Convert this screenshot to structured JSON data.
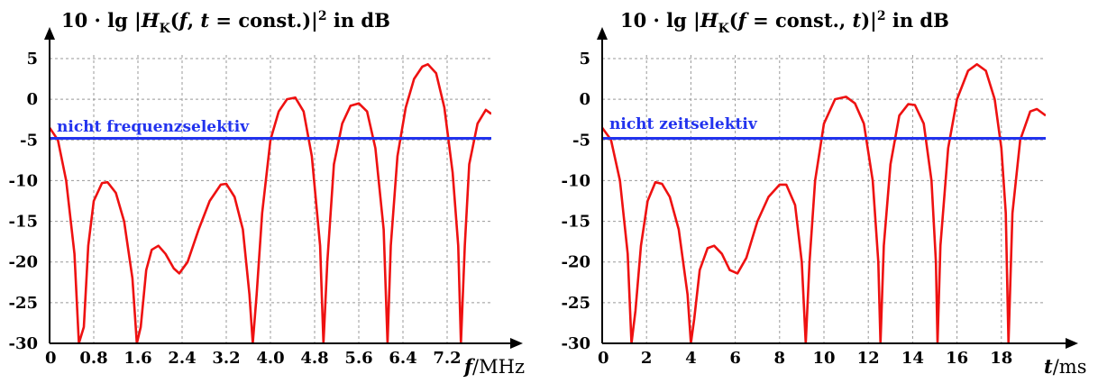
{
  "chart_data": [
    {
      "type": "line",
      "title_parts": [
        "10 · lg |",
        "H",
        "K",
        "(",
        "f",
        ", ",
        "t",
        " = const.)|",
        "2",
        " in dB"
      ],
      "xlabel_var": "f",
      "xlabel_unit": "/MHz",
      "xlim": [
        0,
        8
      ],
      "ylim": [
        -30,
        5
      ],
      "x_ticks": [
        0,
        0.8,
        1.6,
        2.4,
        3.2,
        4.0,
        4.8,
        5.6,
        6.4,
        7.2
      ],
      "x_tick_labels": [
        "0",
        "0.8",
        "1.6",
        "2.4",
        "3.2",
        "4.0",
        "4.8",
        "5.6",
        "6.4",
        "7.2"
      ],
      "y_ticks": [
        5,
        0,
        -5,
        -10,
        -15,
        -20,
        -25,
        -30
      ],
      "y_tick_labels": [
        "5",
        "0",
        "-5",
        "-10",
        "-15",
        "-20",
        "-25",
        "-30"
      ],
      "grid": true,
      "annotation": "nicht frequenzselektiv",
      "series": [
        {
          "color": "#ee1111",
          "points": [
            [
              0,
              -3.5
            ],
            [
              0.15,
              -5
            ],
            [
              0.3,
              -10
            ],
            [
              0.45,
              -19
            ],
            [
              0.53,
              -30
            ],
            [
              0.62,
              -28
            ],
            [
              0.7,
              -18
            ],
            [
              0.8,
              -12.5
            ],
            [
              0.95,
              -10.3
            ],
            [
              1.05,
              -10.2
            ],
            [
              1.2,
              -11.5
            ],
            [
              1.35,
              -15
            ],
            [
              1.5,
              -22
            ],
            [
              1.58,
              -30
            ],
            [
              1.65,
              -28
            ],
            [
              1.75,
              -21
            ],
            [
              1.85,
              -18.5
            ],
            [
              1.97,
              -18
            ],
            [
              2.1,
              -19
            ],
            [
              2.25,
              -20.8
            ],
            [
              2.35,
              -21.4
            ],
            [
              2.5,
              -20
            ],
            [
              2.7,
              -16
            ],
            [
              2.9,
              -12.5
            ],
            [
              3.1,
              -10.5
            ],
            [
              3.2,
              -10.4
            ],
            [
              3.35,
              -12
            ],
            [
              3.5,
              -16
            ],
            [
              3.62,
              -24
            ],
            [
              3.68,
              -30
            ],
            [
              3.75,
              -24
            ],
            [
              3.85,
              -14
            ],
            [
              4.0,
              -5
            ],
            [
              4.15,
              -1.5
            ],
            [
              4.3,
              0
            ],
            [
              4.45,
              0.2
            ],
            [
              4.6,
              -1.5
            ],
            [
              4.75,
              -7
            ],
            [
              4.9,
              -18
            ],
            [
              4.96,
              -30
            ],
            [
              5.03,
              -20
            ],
            [
              5.15,
              -8
            ],
            [
              5.3,
              -3
            ],
            [
              5.45,
              -0.8
            ],
            [
              5.6,
              -0.5
            ],
            [
              5.75,
              -1.5
            ],
            [
              5.9,
              -6
            ],
            [
              6.05,
              -16
            ],
            [
              6.12,
              -30
            ],
            [
              6.18,
              -18
            ],
            [
              6.3,
              -7
            ],
            [
              6.45,
              -1
            ],
            [
              6.6,
              2.5
            ],
            [
              6.75,
              4
            ],
            [
              6.85,
              4.3
            ],
            [
              7.0,
              3.2
            ],
            [
              7.15,
              -1
            ],
            [
              7.3,
              -9
            ],
            [
              7.4,
              -18
            ],
            [
              7.45,
              -30
            ],
            [
              7.52,
              -18
            ],
            [
              7.6,
              -8
            ],
            [
              7.75,
              -3
            ],
            [
              7.9,
              -1.3
            ],
            [
              8.0,
              -1.8
            ]
          ]
        },
        {
          "color": "#2233ee",
          "points": [
            [
              0,
              -4.8
            ],
            [
              8,
              -4.8
            ]
          ]
        }
      ]
    },
    {
      "type": "line",
      "title_parts": [
        "10 · lg |",
        "H",
        "K",
        "(",
        "f",
        " = const., ",
        "t",
        ")|",
        "2",
        " in dB"
      ],
      "xlabel_var": "t",
      "xlabel_unit": "/ms",
      "xlim": [
        0,
        20
      ],
      "ylim": [
        -30,
        5
      ],
      "x_ticks": [
        0,
        2,
        4,
        6,
        8,
        10,
        12,
        14,
        16,
        18
      ],
      "x_tick_labels": [
        "0",
        "2",
        "4",
        "6",
        "8",
        "10",
        "12",
        "14",
        "16",
        "18"
      ],
      "y_ticks": [
        5,
        0,
        -5,
        -10,
        -15,
        -20,
        -25,
        -30
      ],
      "y_tick_labels": [
        "5",
        "0",
        "-5",
        "-10",
        "-15",
        "-20",
        "-25",
        "-30"
      ],
      "grid": true,
      "annotation": "nicht zeitselektiv",
      "series": [
        {
          "color": "#ee1111",
          "points": [
            [
              0,
              -3.5
            ],
            [
              0.4,
              -5
            ],
            [
              0.8,
              -10
            ],
            [
              1.15,
              -19
            ],
            [
              1.32,
              -30
            ],
            [
              1.5,
              -26
            ],
            [
              1.75,
              -18
            ],
            [
              2.05,
              -12.5
            ],
            [
              2.4,
              -10.2
            ],
            [
              2.7,
              -10.4
            ],
            [
              3.05,
              -12
            ],
            [
              3.45,
              -16
            ],
            [
              3.85,
              -24
            ],
            [
              4.0,
              -30
            ],
            [
              4.15,
              -27
            ],
            [
              4.4,
              -21
            ],
            [
              4.75,
              -18.3
            ],
            [
              5.05,
              -18
            ],
            [
              5.4,
              -19
            ],
            [
              5.75,
              -21
            ],
            [
              6.1,
              -21.4
            ],
            [
              6.5,
              -19.5
            ],
            [
              7.0,
              -15
            ],
            [
              7.5,
              -12
            ],
            [
              8.0,
              -10.5
            ],
            [
              8.3,
              -10.5
            ],
            [
              8.7,
              -13
            ],
            [
              9.0,
              -20
            ],
            [
              9.18,
              -30
            ],
            [
              9.35,
              -20
            ],
            [
              9.6,
              -10
            ],
            [
              10.0,
              -3
            ],
            [
              10.5,
              0
            ],
            [
              11.0,
              0.3
            ],
            [
              11.4,
              -0.5
            ],
            [
              11.8,
              -3
            ],
            [
              12.2,
              -10
            ],
            [
              12.45,
              -20
            ],
            [
              12.55,
              -30
            ],
            [
              12.7,
              -18
            ],
            [
              13.0,
              -8
            ],
            [
              13.4,
              -2
            ],
            [
              13.8,
              -0.6
            ],
            [
              14.1,
              -0.7
            ],
            [
              14.5,
              -3
            ],
            [
              14.85,
              -10
            ],
            [
              15.05,
              -20
            ],
            [
              15.12,
              -30
            ],
            [
              15.25,
              -18
            ],
            [
              15.6,
              -6
            ],
            [
              16.0,
              0
            ],
            [
              16.5,
              3.5
            ],
            [
              16.9,
              4.3
            ],
            [
              17.3,
              3.5
            ],
            [
              17.7,
              0
            ],
            [
              18.0,
              -6
            ],
            [
              18.2,
              -14
            ],
            [
              18.32,
              -30
            ],
            [
              18.5,
              -14
            ],
            [
              18.85,
              -5
            ],
            [
              19.3,
              -1.5
            ],
            [
              19.6,
              -1.2
            ],
            [
              20.0,
              -2
            ]
          ]
        },
        {
          "color": "#2233ee",
          "points": [
            [
              0,
              -4.8
            ],
            [
              20,
              -4.8
            ]
          ]
        }
      ]
    }
  ]
}
